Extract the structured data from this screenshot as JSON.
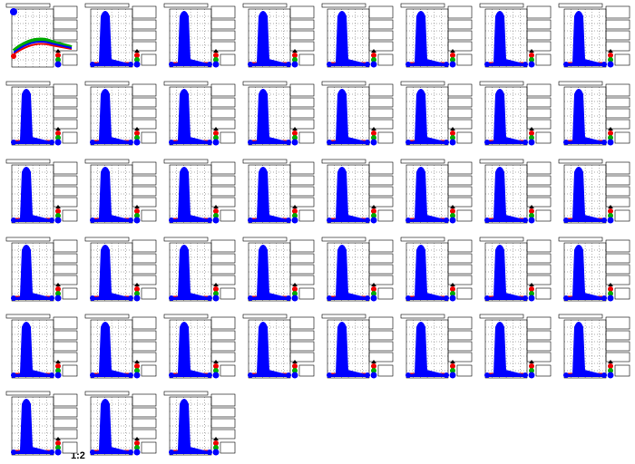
{
  "footer_label": "1:2"
}
